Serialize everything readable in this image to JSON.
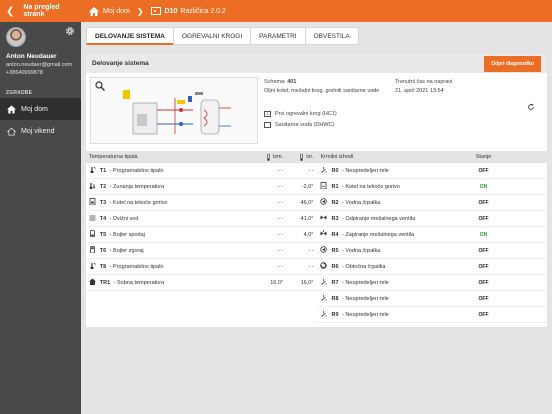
{
  "topbar": {
    "back_label": "Na pregled strank",
    "home_label": "Moj dom",
    "device_name": "D10",
    "device_version": "Različica 2.0.2"
  },
  "sidebar": {
    "user_name": "Anton Neudauer",
    "user_email": "anton.neudaer@gmail.com",
    "user_phone": "+38640999878",
    "section_label": "ZGRADBE",
    "items": [
      {
        "label": "Moj dom",
        "active": true
      },
      {
        "label": "Moj vikend",
        "active": false
      }
    ]
  },
  "tabs": [
    {
      "label": "DELOVANJE SISTEMA",
      "active": true
    },
    {
      "label": "OGREVALNI KROGI",
      "active": false
    },
    {
      "label": "PARAMETRI",
      "active": false
    },
    {
      "label": "OBVESTILA",
      "active": false
    }
  ],
  "panel": {
    "title": "Delovanje sistema",
    "diag_button": "Odpri diagnostiko"
  },
  "schema": {
    "label": "Schema:",
    "number": "401",
    "description": "Oljni kotel, mešalni krog, grelnik sanitarne vode",
    "circuits": [
      "Prvi ogrevalni krog (HC1)",
      "Sanitarna voda (DHWC)"
    ],
    "time_label": "Trenutni čas na napravi",
    "time_value": "21. april 2021 13:54"
  },
  "temps": {
    "headers": {
      "name": "Temperaturna tipala",
      "izm": "Izm.",
      "izr": "Izr."
    },
    "rows": [
      {
        "icon": "programmable-sensor-icon",
        "code": "T1",
        "name": "Programabilno tipalo",
        "izm": "- -",
        "izr": "- -"
      },
      {
        "icon": "outdoor-temp-icon",
        "code": "T2",
        "name": "Zunanja temperatura",
        "izm": "- -",
        "izr": "-2,0°"
      },
      {
        "icon": "boiler-icon",
        "code": "T3",
        "name": "Kotel na tekoče gorivo",
        "izm": "- -",
        "izr": "46,0°"
      },
      {
        "icon": "flow-icon",
        "code": "T4",
        "name": "Dvižni vod",
        "izm": "- -",
        "izr": "41,0°"
      },
      {
        "icon": "tank-bottom-icon",
        "code": "T5",
        "name": "Bojler spodaj",
        "izm": "- -",
        "izr": "4,0°"
      },
      {
        "icon": "tank-top-icon",
        "code": "T6",
        "name": "Bojler zgoraj",
        "izm": "- -",
        "izr": "- -"
      },
      {
        "icon": "programmable-sensor-icon",
        "code": "T8",
        "name": "Programabilno tipalo",
        "izm": "- -",
        "izr": "- -"
      },
      {
        "icon": "room-temp-icon",
        "code": "TR1",
        "name": "Sobna temperatura",
        "izm": "16,0°",
        "izr": "16,0°"
      }
    ]
  },
  "outputs": {
    "headers": {
      "name": "Krmilni izhodi",
      "state": "Stanje"
    },
    "rows": [
      {
        "icon": "relay-icon",
        "code": "R0",
        "name": "Neopredeljen rele",
        "state": "OFF"
      },
      {
        "icon": "boiler-output-icon",
        "code": "R1",
        "name": "Kotel na tekoče gorivo",
        "state": "ON"
      },
      {
        "icon": "pump-icon",
        "code": "R2",
        "name": "Vodna črpalka",
        "state": "OFF"
      },
      {
        "icon": "valve-open-icon",
        "code": "R3",
        "name": "Odpiranje mešalnega ventila",
        "state": "OFF"
      },
      {
        "icon": "valve-close-icon",
        "code": "R4",
        "name": "Zapiranje mešalnega ventila",
        "state": "ON"
      },
      {
        "icon": "pump-icon",
        "code": "R5",
        "name": "Vodna črpalka",
        "state": "OFF"
      },
      {
        "icon": "circulation-pump-icon",
        "code": "R6",
        "name": "Obtočna črpalka",
        "state": "OFF"
      },
      {
        "icon": "relay-icon",
        "code": "R7",
        "name": "Neopredeljen rele",
        "state": "OFF"
      },
      {
        "icon": "relay-icon",
        "code": "R8",
        "name": "Neopredeljen rele",
        "state": "OFF"
      },
      {
        "icon": "relay-icon",
        "code": "R9",
        "name": "Neopredeljen rele",
        "state": "OFF"
      }
    ]
  },
  "colors": {
    "accent": "#ec6e24",
    "sidebar": "#494949",
    "on": "#2c9b2c"
  }
}
